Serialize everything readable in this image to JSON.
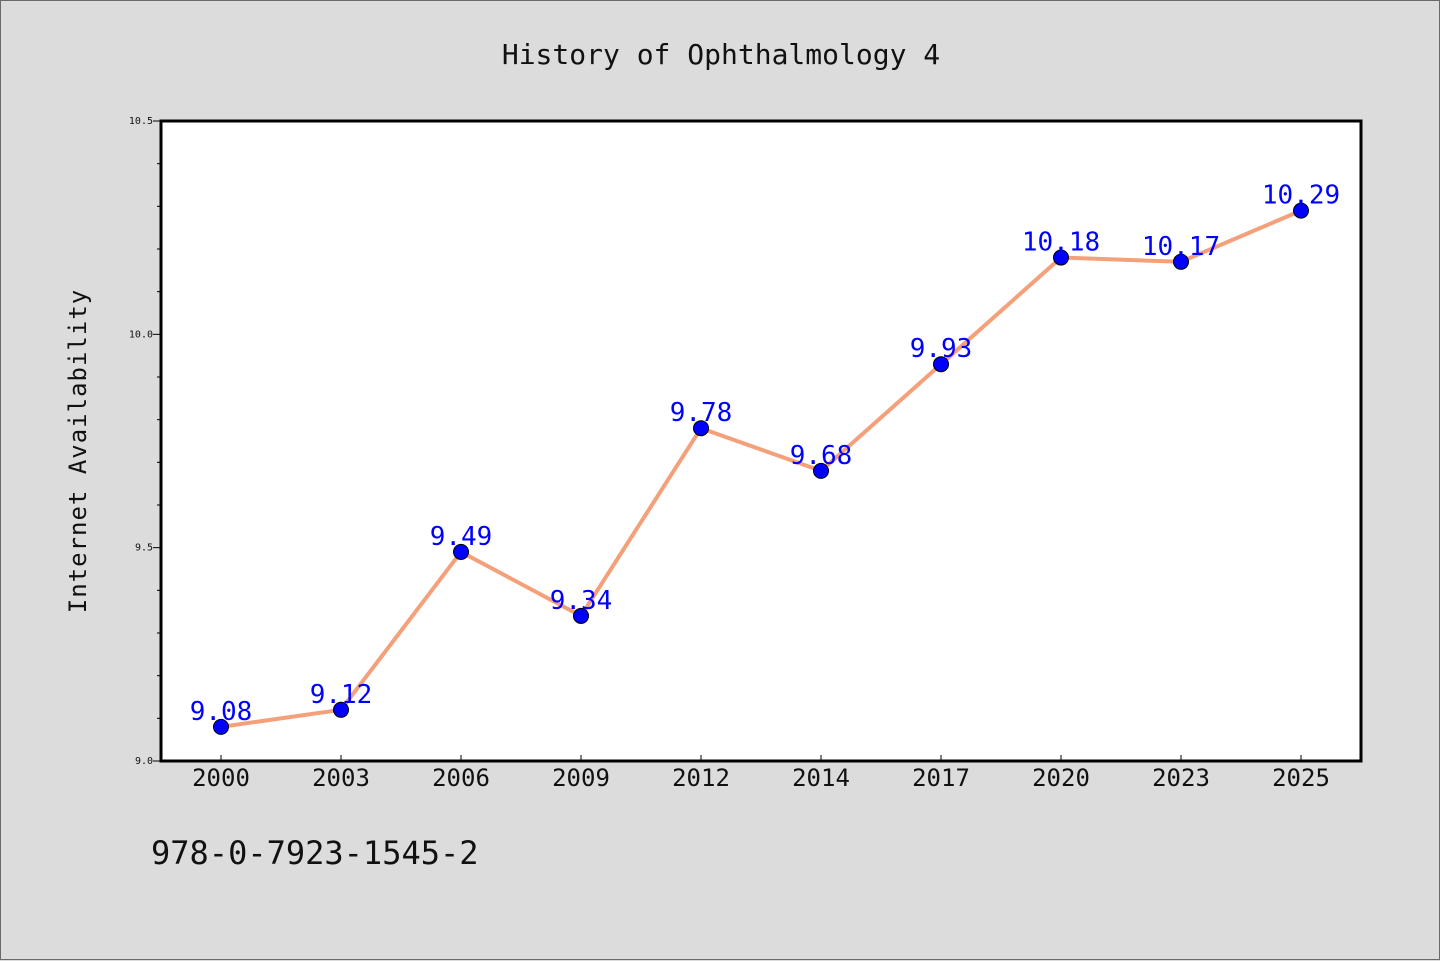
{
  "chart_data": {
    "type": "line",
    "title": "History of Ophthalmology 4",
    "xlabel": "",
    "ylabel": "Internet Availability",
    "categories": [
      "2000",
      "2003",
      "2006",
      "2009",
      "2012",
      "2014",
      "2017",
      "2020",
      "2023",
      "2025"
    ],
    "series": [
      {
        "values": [
          9.08,
          9.12,
          9.49,
          9.34,
          9.78,
          9.68,
          9.93,
          10.18,
          10.17,
          10.29
        ],
        "data_labels": [
          "9.08",
          "9.12",
          "9.49",
          "9.34",
          "9.78",
          "9.68",
          "9.93",
          "10.18",
          "10.17",
          "10.29"
        ],
        "line_color": "#f4a07a",
        "marker_color": "#0000ff"
      }
    ],
    "ylim": [
      9.0,
      10.5
    ],
    "yticks": [
      "9.0",
      "9.5",
      "10.0",
      "10.5"
    ],
    "grid": false,
    "legend": "none"
  },
  "footer_text": "978-0-7923-1545-2",
  "colors": {
    "background": "#dcdcdc",
    "plot_background": "#ffffff",
    "label_color": "#0000ff"
  }
}
